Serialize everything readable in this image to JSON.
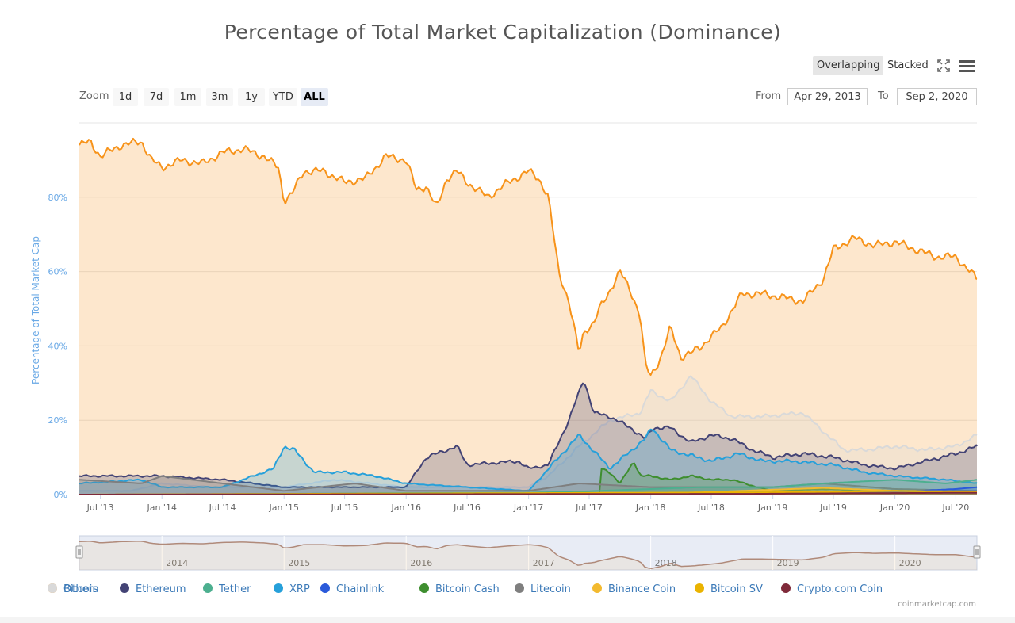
{
  "title": "Percentage of Total Market Capitalization (Dominance)",
  "modes": {
    "overlapping": "Overlapping",
    "stacked": "Stacked"
  },
  "zoom": {
    "label": "Zoom",
    "buttons": [
      "1d",
      "7d",
      "1m",
      "3m",
      "1y",
      "YTD",
      "ALL"
    ],
    "active": "ALL"
  },
  "range": {
    "from_label": "From",
    "from_value": "Apr 29, 2013",
    "to_label": "To",
    "to_value": "Sep 2, 2020"
  },
  "credits": "coinmarketcap.com",
  "colors": {
    "bitcoin": "#f7931a",
    "ethereum": "#434375",
    "tether": "#4caf8f",
    "xrp": "#26a0da",
    "chainlink": "#2a5ada",
    "bitcoin_cash": "#3e8e2f",
    "litecoin": "#7f7f7f",
    "binance": "#f3ba2f",
    "bitcoin_sv": "#eab300",
    "crypto_com": "#7f2a3a",
    "others": "#d9d9d9",
    "axis_label": "#6aa9e6"
  },
  "chart_data": {
    "type": "area",
    "ylabel": "Percentage of Total Market Cap",
    "ylim": [
      0,
      100
    ],
    "yticks": [
      "0%",
      "20%",
      "40%",
      "60%",
      "80%"
    ],
    "xticks": [
      "Jul '13",
      "Jan '14",
      "Jul '14",
      "Jan '15",
      "Jul '15",
      "Jan '16",
      "Jul '16",
      "Jan '17",
      "Jul '17",
      "Jan '18",
      "Jul '18",
      "Jan '19",
      "Jul '19",
      "Jan '20",
      "Jul '20"
    ],
    "navigator_labels": [
      "2014",
      "2015",
      "2016",
      "2017",
      "2018",
      "2019",
      "2020"
    ],
    "legend_position": "bottom",
    "series": [
      {
        "name": "Bitcoin",
        "color": "#f7931a",
        "x": [
          "2013-04-29",
          "2013-06-01",
          "2013-07-01",
          "2013-09-01",
          "2013-11-01",
          "2013-12-01",
          "2014-01-01",
          "2014-03-01",
          "2014-05-01",
          "2014-07-01",
          "2014-09-01",
          "2014-11-01",
          "2014-12-15",
          "2015-01-01",
          "2015-01-25",
          "2015-03-01",
          "2015-05-01",
          "2015-07-01",
          "2015-09-01",
          "2015-11-01",
          "2016-01-01",
          "2016-02-01",
          "2016-03-01",
          "2016-04-01",
          "2016-05-01",
          "2016-06-01",
          "2016-07-01",
          "2016-09-01",
          "2016-11-01",
          "2017-01-01",
          "2017-02-01",
          "2017-03-01",
          "2017-04-01",
          "2017-05-01",
          "2017-06-01",
          "2017-06-15",
          "2017-07-15",
          "2017-08-01",
          "2017-09-01",
          "2017-10-01",
          "2017-11-01",
          "2017-12-01",
          "2017-12-15",
          "2018-01-01",
          "2018-02-01",
          "2018-03-01",
          "2018-04-01",
          "2018-05-01",
          "2018-06-01",
          "2018-08-01",
          "2018-10-01",
          "2018-12-01",
          "2019-02-01",
          "2019-04-01",
          "2019-06-01",
          "2019-07-01",
          "2019-09-01",
          "2019-11-01",
          "2020-01-01",
          "2020-03-01",
          "2020-05-01",
          "2020-07-01",
          "2020-09-02"
        ],
        "y": [
          94,
          95,
          91,
          94,
          95,
          90,
          88,
          90,
          89,
          92,
          93,
          91,
          88,
          79,
          81,
          87,
          87,
          84,
          85,
          91,
          90,
          82,
          83,
          77,
          85,
          87,
          84,
          80,
          84,
          87,
          85,
          80,
          60,
          52,
          38,
          44,
          46,
          50,
          55,
          60,
          55,
          48,
          35,
          32,
          37,
          45,
          37,
          38,
          40,
          45,
          54,
          54,
          53,
          52,
          58,
          66,
          69,
          67,
          68,
          66,
          64,
          64,
          58
        ]
      },
      {
        "name": "Ethereum",
        "color": "#434375",
        "x": [
          "2013-04-29",
          "2014-01-01",
          "2014-07-01",
          "2015-01-01",
          "2015-07-01",
          "2016-01-01",
          "2016-03-01",
          "2016-06-01",
          "2016-07-01",
          "2016-12-01",
          "2017-01-01",
          "2017-03-01",
          "2017-05-01",
          "2017-06-15",
          "2017-07-15",
          "2017-09-01",
          "2017-11-01",
          "2017-12-15",
          "2018-01-10",
          "2018-03-01",
          "2018-05-01",
          "2018-07-01",
          "2018-09-01",
          "2018-11-01",
          "2019-01-01",
          "2019-04-01",
          "2019-07-01",
          "2019-10-01",
          "2020-01-01",
          "2020-04-01",
          "2020-07-01",
          "2020-09-02"
        ],
        "y": [
          5,
          5,
          4,
          2,
          2,
          2,
          10,
          13,
          8,
          9,
          7,
          8,
          20,
          31,
          22,
          21,
          18,
          15,
          18,
          18,
          14,
          16,
          15,
          12,
          10,
          11,
          10,
          8,
          7,
          9,
          11,
          13
        ]
      },
      {
        "name": "Tether",
        "color": "#4caf8f",
        "x": [
          "2013-04-29",
          "2014-01-01",
          "2015-01-01",
          "2016-01-01",
          "2017-01-01",
          "2017-06-01",
          "2018-01-01",
          "2018-06-01",
          "2019-01-01",
          "2019-06-01",
          "2020-01-01",
          "2020-06-01",
          "2020-09-02"
        ],
        "y": [
          0,
          0,
          0.2,
          0.4,
          0.5,
          0.8,
          1.5,
          2,
          2,
          3,
          4,
          3,
          4
        ]
      },
      {
        "name": "XRP",
        "color": "#26a0da",
        "x": [
          "2013-04-29",
          "2013-11-01",
          "2014-01-01",
          "2014-07-01",
          "2014-12-01",
          "2015-01-01",
          "2015-02-01",
          "2015-04-01",
          "2015-07-01",
          "2015-10-01",
          "2016-01-01",
          "2016-07-01",
          "2017-01-01",
          "2017-04-01",
          "2017-06-01",
          "2017-09-01",
          "2017-12-15",
          "2018-01-05",
          "2018-03-01",
          "2018-07-01",
          "2018-09-20",
          "2018-12-01",
          "2019-03-01",
          "2019-07-01",
          "2019-10-01",
          "2020-01-01",
          "2020-06-01",
          "2020-09-02"
        ],
        "y": [
          3,
          4,
          2,
          2,
          7,
          13,
          12,
          6,
          6,
          5,
          3,
          2,
          1,
          10,
          16,
          7,
          15,
          18,
          12,
          9,
          11,
          9,
          9,
          8,
          6,
          5,
          4,
          3
        ]
      },
      {
        "name": "Chainlink",
        "color": "#2a5ada",
        "x": [
          "2013-04-29",
          "2017-09-01",
          "2018-06-01",
          "2019-06-01",
          "2020-01-01",
          "2020-07-01",
          "2020-09-02"
        ],
        "y": [
          0,
          0.2,
          0.3,
          0.5,
          0.7,
          1.5,
          2
        ]
      },
      {
        "name": "Bitcoin Cash",
        "color": "#3e8e2f",
        "x": [
          "2013-04-29",
          "2017-07-31",
          "2017-08-05",
          "2017-09-01",
          "2017-10-01",
          "2017-11-12",
          "2017-12-01",
          "2018-01-01",
          "2018-03-01",
          "2018-05-01",
          "2018-07-01",
          "2018-09-01",
          "2018-11-15",
          "2019-01-01",
          "2019-06-01",
          "2020-01-01",
          "2020-09-02"
        ],
        "y": [
          0,
          0,
          7,
          6,
          3,
          9,
          5,
          5,
          4,
          5,
          4,
          4,
          2,
          1,
          1.5,
          1,
          0.8
        ]
      },
      {
        "name": "Litecoin",
        "color": "#7f7f7f",
        "x": [
          "2013-04-29",
          "2013-11-01",
          "2014-01-01",
          "2014-07-01",
          "2015-01-01",
          "2015-08-01",
          "2016-01-01",
          "2017-01-01",
          "2017-06-01",
          "2018-01-01",
          "2019-01-01",
          "2019-06-01",
          "2020-01-01",
          "2020-09-02"
        ],
        "y": [
          4,
          3,
          5,
          3,
          1,
          3,
          1,
          1,
          3,
          2,
          2,
          3,
          1.5,
          1
        ]
      },
      {
        "name": "Binance Coin",
        "color": "#f3ba2f",
        "x": [
          "2013-04-29",
          "2017-08-01",
          "2018-06-01",
          "2019-06-01",
          "2020-01-01",
          "2020-09-02"
        ],
        "y": [
          0,
          0.1,
          0.6,
          1.8,
          1,
          0.8
        ]
      },
      {
        "name": "Bitcoin SV",
        "color": "#eab300",
        "x": [
          "2013-04-29",
          "2018-11-15",
          "2019-06-01",
          "2020-01-01",
          "2020-09-02"
        ],
        "y": [
          0,
          0.6,
          0.7,
          1,
          0.6
        ]
      },
      {
        "name": "Crypto.com Coin",
        "color": "#7f2a3a",
        "x": [
          "2013-04-29",
          "2018-11-01",
          "2019-06-01",
          "2020-01-01",
          "2020-09-02"
        ],
        "y": [
          0,
          0.2,
          0.3,
          0.4,
          0.5
        ]
      },
      {
        "name": "Others",
        "color": "#d9d9d9",
        "x": [
          "2013-04-29",
          "2013-10-01",
          "2014-01-01",
          "2014-06-01",
          "2015-01-01",
          "2015-06-01",
          "2016-01-01",
          "2016-06-01",
          "2017-01-01",
          "2017-03-01",
          "2017-06-01",
          "2017-09-01",
          "2017-12-01",
          "2018-01-01",
          "2018-03-01",
          "2018-05-01",
          "2018-07-01",
          "2018-09-01",
          "2018-12-01",
          "2019-04-01",
          "2019-06-01",
          "2019-08-01",
          "2019-10-01",
          "2020-01-01",
          "2020-04-01",
          "2020-07-01",
          "2020-09-02"
        ],
        "y": [
          1,
          1,
          3,
          2,
          2,
          4,
          2,
          2,
          2,
          5,
          13,
          20,
          22,
          28,
          25,
          32,
          25,
          21,
          21,
          22,
          17,
          12,
          12,
          13,
          12,
          13,
          16
        ]
      }
    ]
  }
}
